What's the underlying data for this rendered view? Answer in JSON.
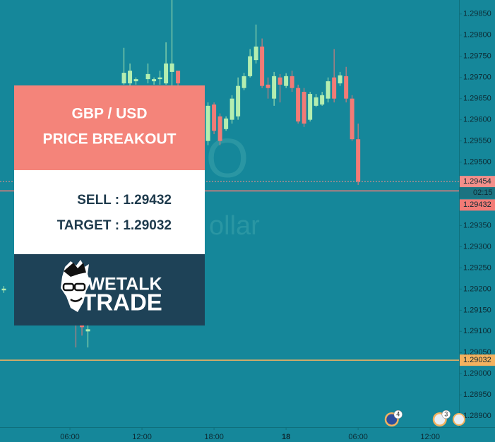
{
  "chart_data": {
    "type": "candlestick",
    "up_color": "#b4eeb0",
    "down_color": "#f27b76",
    "x": [
      0.5,
      6.5,
      7,
      7.5,
      10.5,
      11,
      11.5,
      12.5,
      13,
      13.5,
      14,
      14.5,
      15,
      17,
      17.5,
      18,
      18.5,
      19,
      19.5,
      20,
      20.5,
      21,
      21.5,
      22,
      22.5,
      23,
      23.5,
      24,
      24.5,
      25,
      25.5,
      26,
      26.5,
      27,
      27.5,
      28,
      28.5,
      29,
      29.5,
      30
    ],
    "open": [
      1.29197,
      1.2914,
      1.29115,
      1.291,
      1.29686,
      1.29686,
      1.29691,
      1.29696,
      1.29691,
      1.29696,
      1.29686,
      1.29713,
      1.29716,
      1.29499,
      1.2955,
      1.29636,
      1.29608,
      1.29578,
      1.296,
      1.29608,
      1.29675,
      1.29703,
      1.29741,
      1.29773,
      1.29683,
      1.2965,
      1.297,
      1.2968,
      1.29703,
      1.29675,
      1.29666,
      1.296,
      1.29633,
      1.29636,
      1.2965,
      1.297,
      1.29686,
      1.29703,
      1.2965,
      1.29554
    ],
    "high": [
      1.29207,
      1.29149,
      1.29124,
      1.29115,
      1.2977,
      1.29733,
      1.297,
      1.29733,
      1.297,
      1.29716,
      1.29783,
      1.29883,
      1.29716,
      1.29574,
      1.29641,
      1.29641,
      1.29615,
      1.29608,
      1.29658,
      1.297,
      1.29711,
      1.29767,
      1.29825,
      1.29792,
      1.297,
      1.29713,
      1.29708,
      1.2971,
      1.29716,
      1.29683,
      1.29675,
      1.29666,
      1.29661,
      1.29666,
      1.297,
      1.29767,
      1.29713,
      1.29725,
      1.29658,
      1.29591
    ],
    "low": [
      1.29191,
      1.29062,
      1.2909,
      1.29062,
      1.29683,
      1.2968,
      1.29683,
      1.29686,
      1.29683,
      1.29683,
      1.29683,
      1.29675,
      1.29675,
      1.29396,
      1.2954,
      1.29566,
      1.2954,
      1.29574,
      1.29591,
      1.296,
      1.2967,
      1.297,
      1.29733,
      1.29675,
      1.2965,
      1.29633,
      1.29641,
      1.29675,
      1.29666,
      1.29591,
      1.29583,
      1.29596,
      1.2963,
      1.29633,
      1.29641,
      1.29641,
      1.2968,
      1.29641,
      1.2955,
      1.29446
    ],
    "close": [
      1.29201,
      1.2913,
      1.2911,
      1.29105,
      1.29711,
      1.29716,
      1.29696,
      1.29708,
      1.29696,
      1.297,
      1.29733,
      1.29733,
      1.29686,
      1.29566,
      1.29633,
      1.29574,
      1.2955,
      1.29603,
      1.2965,
      1.2968,
      1.29703,
      1.2975,
      1.29773,
      1.2968,
      1.29675,
      1.29703,
      1.29683,
      1.29703,
      1.29675,
      1.29596,
      1.29591,
      1.29661,
      1.29653,
      1.29658,
      1.29691,
      1.2965,
      1.29705,
      1.2965,
      1.29554,
      1.29454
    ],
    "xlim": [
      0,
      38.4
    ],
    "xticks": [
      {
        "value": 6,
        "label": "06:00"
      },
      {
        "value": 12,
        "label": "12:00"
      },
      {
        "value": 18,
        "label": "18:00"
      },
      {
        "value": 24,
        "label": "18"
      },
      {
        "value": 30,
        "label": "06:00"
      },
      {
        "value": 36,
        "label": "12:00"
      }
    ],
    "ylim": [
      1.28882,
      1.29883
    ],
    "yticks": [
      {
        "value": 1.289,
        "label": "1.28900"
      },
      {
        "value": 1.2895,
        "label": "1.28950"
      },
      {
        "value": 1.29,
        "label": "1.29000"
      },
      {
        "value": 1.2905,
        "label": "1.29050"
      },
      {
        "value": 1.291,
        "label": "1.29100"
      },
      {
        "value": 1.2915,
        "label": "1.29150"
      },
      {
        "value": 1.292,
        "label": "1.29200"
      },
      {
        "value": 1.2925,
        "label": "1.29250"
      },
      {
        "value": 1.293,
        "label": "1.29300"
      },
      {
        "value": 1.2935,
        "label": "1.29350"
      },
      {
        "value": 1.294,
        "label": "1.29400"
      },
      {
        "value": 1.2945,
        "label": "1.29450"
      },
      {
        "value": 1.295,
        "label": "1.29500"
      },
      {
        "value": 1.2955,
        "label": "1.29550"
      },
      {
        "value": 1.296,
        "label": "1.29600"
      },
      {
        "value": 1.2965,
        "label": "1.29650"
      },
      {
        "value": 1.297,
        "label": "1.29700"
      },
      {
        "value": 1.2975,
        "label": "1.29750"
      },
      {
        "value": 1.298,
        "label": "1.29800"
      },
      {
        "value": 1.2985,
        "label": "1.29850"
      }
    ],
    "price_lines": [
      {
        "value": 1.29454,
        "color": "#f48f8a",
        "style": "dotted"
      },
      {
        "value": 1.29432,
        "color": "#f27b76",
        "style": "solid"
      },
      {
        "value": 1.29032,
        "color": "#f4b25f",
        "style": "solid"
      }
    ],
    "countdown": "02:15",
    "events": [
      {
        "x": 32.8,
        "count": 4
      },
      {
        "x": 36.8,
        "count": 3
      }
    ],
    "watermark": [
      "O",
      "ollar"
    ],
    "card": {
      "title_lines": [
        "GBP / USD",
        "PRICE BREAKOUT"
      ],
      "sell": "SELL : 1.29432",
      "target": "TARGET : 1.29032",
      "logo_top": "WETALK",
      "logo_bottom": "TRADE"
    }
  }
}
